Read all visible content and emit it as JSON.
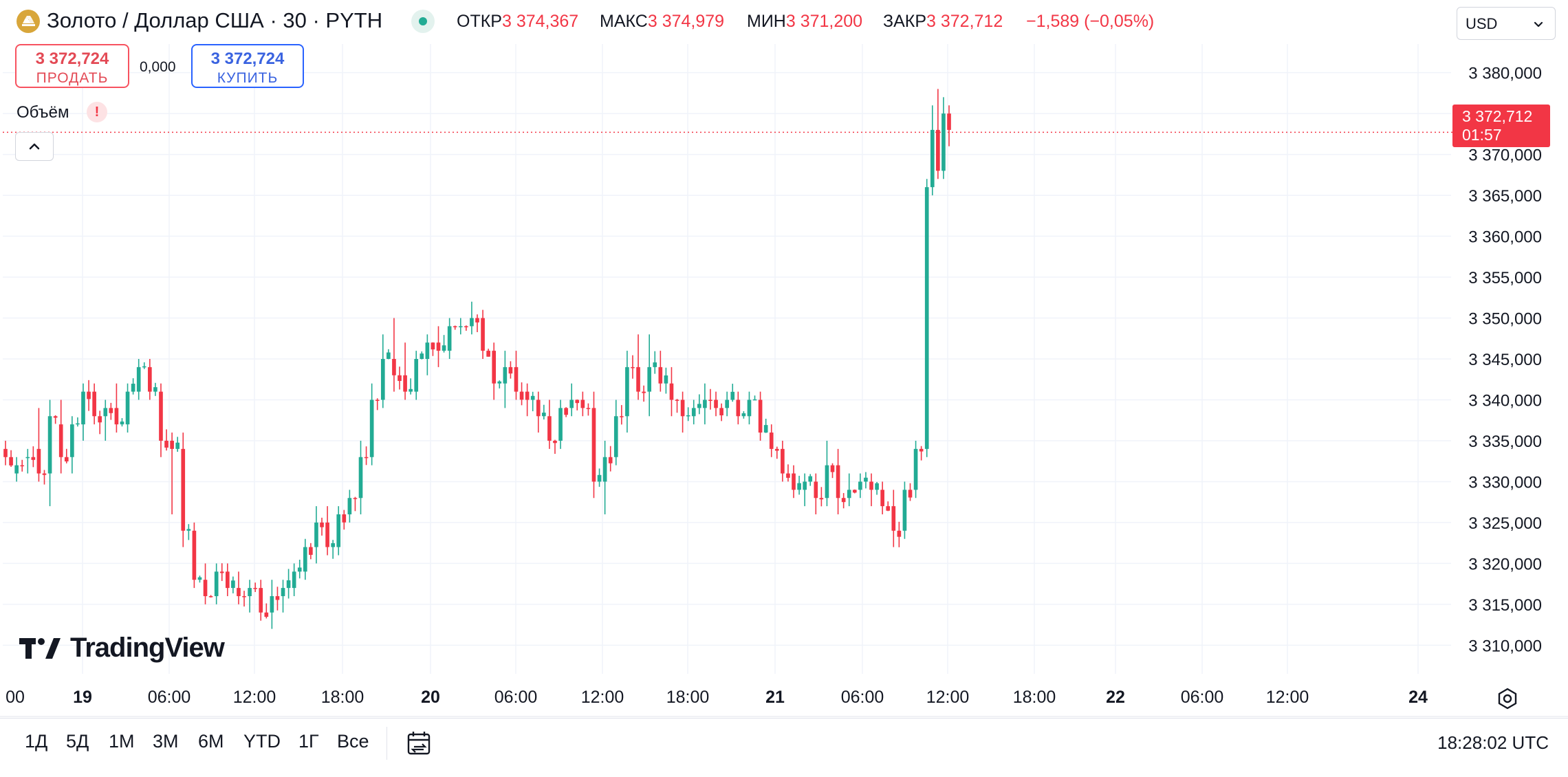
{
  "header": {
    "symbol_title": "Золото / Доллар США · 30 · PYTH",
    "ohlc": [
      {
        "label": "ОТКР",
        "value": "3 374,367"
      },
      {
        "label": "МАКС",
        "value": "3 374,979"
      },
      {
        "label": "МИН",
        "value": "3 371,200"
      },
      {
        "label": "ЗАКР",
        "value": "3 372,712"
      }
    ],
    "change": "−1,589 (−0,05%)",
    "currency": "USD"
  },
  "trade": {
    "sell_price": "3 372,724",
    "sell_label": "ПРОДАТЬ",
    "spread": "0,000",
    "buy_price": "3 372,724",
    "buy_label": "КУПИТЬ"
  },
  "volume_label": "Объём",
  "last_price": {
    "price": "3 372,712",
    "countdown": "01:57"
  },
  "brand": "TradingView",
  "x_axis": {
    "labels": [
      {
        "text": "00",
        "bold": false
      },
      {
        "text": "19",
        "bold": true
      },
      {
        "text": "06:00",
        "bold": false
      },
      {
        "text": "12:00",
        "bold": false
      },
      {
        "text": "18:00",
        "bold": false
      },
      {
        "text": "20",
        "bold": true
      },
      {
        "text": "06:00",
        "bold": false
      },
      {
        "text": "12:00",
        "bold": false
      },
      {
        "text": "18:00",
        "bold": false
      },
      {
        "text": "21",
        "bold": true
      },
      {
        "text": "06:00",
        "bold": false
      },
      {
        "text": "12:00",
        "bold": false
      },
      {
        "text": "18:00",
        "bold": false
      },
      {
        "text": "22",
        "bold": true
      },
      {
        "text": "06:00",
        "bold": false
      },
      {
        "text": "12:00",
        "bold": false
      },
      {
        "text": "24",
        "bold": true
      }
    ]
  },
  "ranges": [
    "1Д",
    "5Д",
    "1М",
    "3М",
    "6М",
    "YTD",
    "1Г",
    "Все"
  ],
  "clock": "18:28:02 UTC",
  "colors": {
    "up": "#22ab94",
    "down": "#f23645",
    "grid": "#f0f3fa"
  },
  "chart_data": {
    "type": "candlestick",
    "interval": "30 min",
    "y_ticks": [
      3310,
      3315,
      3320,
      3325,
      3330,
      3335,
      3340,
      3345,
      3350,
      3355,
      3360,
      3365,
      3370,
      3375,
      3380
    ],
    "y_tick_labels": [
      "3 310,000",
      "3 315,000",
      "3 320,000",
      "3 325,000",
      "3 330,000",
      "3 335,000",
      "3 340,000",
      "3 345,000",
      "3 350,000",
      "3 355,000",
      "3 360,000",
      "3 365,000",
      "3 370,000",
      "3 375,000",
      "3 380,000"
    ],
    "ylim": [
      3306.5,
      3383.5
    ],
    "last_price": 3372.712,
    "anchors": [
      [
        3334,
        3335,
        3332,
        3333
      ],
      [
        3331,
        3333,
        3330,
        3332
      ],
      [
        3333,
        3334,
        3331,
        3333
      ],
      [
        3334,
        3339,
        3330,
        3331
      ],
      [
        3331,
        3340,
        3327,
        3338
      ],
      [
        3337,
        3340,
        3331,
        3333
      ],
      [
        3333,
        3338,
        3331,
        3337
      ],
      [
        3337,
        3342,
        3335,
        3341
      ],
      [
        3341,
        3342,
        3337,
        3338
      ],
      [
        3338,
        3340,
        3335,
        3339
      ],
      [
        3339,
        3342,
        3336,
        3337
      ],
      [
        3337,
        3342,
        3336,
        3341
      ],
      [
        3341,
        3345,
        3340,
        3344
      ],
      [
        3344,
        3345,
        3340,
        3341
      ],
      [
        3341,
        3342,
        3333,
        3335
      ],
      [
        3335,
        3336,
        3326,
        3334
      ],
      [
        3334,
        3336,
        3322,
        3324
      ],
      [
        3324,
        3325,
        3317,
        3318
      ],
      [
        3318,
        3320,
        3315,
        3316
      ],
      [
        3316,
        3320,
        3315,
        3319
      ],
      [
        3319,
        3320,
        3316,
        3317
      ],
      [
        3317,
        3319,
        3315,
        3316
      ],
      [
        3316,
        3318,
        3314,
        3317
      ],
      [
        3317,
        3318,
        3313,
        3314
      ],
      [
        3314,
        3318,
        3312,
        3316
      ],
      [
        3316,
        3318,
        3314,
        3317
      ],
      [
        3317,
        3320,
        3316,
        3319
      ],
      [
        3319,
        3323,
        3318,
        3322
      ],
      [
        3322,
        3327,
        3320,
        3325
      ],
      [
        3325,
        3327,
        3321,
        3322
      ],
      [
        3322,
        3327,
        3321,
        3326
      ],
      [
        3326,
        3329,
        3325,
        3328
      ],
      [
        3328,
        3335,
        3326,
        3333
      ],
      [
        3333,
        3342,
        3332,
        3340
      ],
      [
        3340,
        3348,
        3339,
        3345
      ],
      [
        3345,
        3350,
        3341,
        3343
      ],
      [
        3343,
        3347,
        3340,
        3341
      ],
      [
        3341,
        3346,
        3340,
        3345
      ],
      [
        3345,
        3348,
        3343,
        3347
      ],
      [
        3347,
        3349,
        3344,
        3346
      ],
      [
        3346,
        3350,
        3345,
        3349
      ],
      [
        3349,
        3350,
        3348,
        3349
      ],
      [
        3349,
        3352,
        3348,
        3350
      ],
      [
        3350,
        3351,
        3345,
        3346
      ],
      [
        3346,
        3347,
        3340,
        3342
      ],
      [
        3342,
        3346,
        3339,
        3344
      ],
      [
        3344,
        3346,
        3340,
        3341
      ],
      [
        3341,
        3342,
        3338,
        3340
      ],
      [
        3340,
        3341,
        3336,
        3338
      ],
      [
        3338,
        3340,
        3334,
        3335
      ],
      [
        3335,
        3340,
        3334,
        3339
      ],
      [
        3339,
        3342,
        3338,
        3340
      ],
      [
        3340,
        3341,
        3338,
        3339
      ],
      [
        3339,
        3341,
        3328,
        3330
      ],
      [
        3330,
        3335,
        3326,
        3333
      ],
      [
        3333,
        3340,
        3332,
        3338
      ],
      [
        3338,
        3346,
        3336,
        3344
      ],
      [
        3344,
        3348,
        3340,
        3341
      ],
      [
        3341,
        3348,
        3338,
        3344
      ],
      [
        3344,
        3346,
        3341,
        3342
      ],
      [
        3342,
        3344,
        3338,
        3340
      ],
      [
        3340,
        3341,
        3336,
        3338
      ],
      [
        3338,
        3340,
        3337,
        3339
      ],
      [
        3339,
        3342,
        3337,
        3340
      ],
      [
        3340,
        3341,
        3338,
        3339
      ],
      [
        3339,
        3341,
        3338,
        3340
      ],
      [
        3340,
        3341,
        3337,
        3338
      ],
      [
        3338,
        3341,
        3337,
        3340
      ],
      [
        3340,
        3341,
        3335,
        3336
      ],
      [
        3336,
        3337,
        3333,
        3334
      ],
      [
        3334,
        3335,
        3330,
        3331
      ],
      [
        3331,
        3332,
        3328,
        3329
      ],
      [
        3329,
        3331,
        3327,
        3330
      ],
      [
        3330,
        3331,
        3326,
        3328
      ],
      [
        3328,
        3335,
        3327,
        3332
      ],
      [
        3332,
        3334,
        3326,
        3328
      ],
      [
        3328,
        3331,
        3327,
        3329
      ],
      [
        3329,
        3331,
        3328,
        3330
      ],
      [
        3330,
        3331,
        3327,
        3329
      ],
      [
        3329,
        3330,
        3326,
        3327
      ],
      [
        3327,
        3329,
        3322,
        3324
      ],
      [
        3324,
        3330,
        3323,
        3329
      ],
      [
        3329,
        3335,
        3328,
        3334
      ],
      [
        3334,
        3367,
        3333,
        3366
      ],
      [
        3366,
        3376,
        3365,
        3373
      ],
      [
        3373,
        3378,
        3367,
        3368
      ],
      [
        3368,
        3377,
        3367,
        3375
      ],
      [
        3375,
        3376,
        3371,
        3373
      ]
    ]
  }
}
